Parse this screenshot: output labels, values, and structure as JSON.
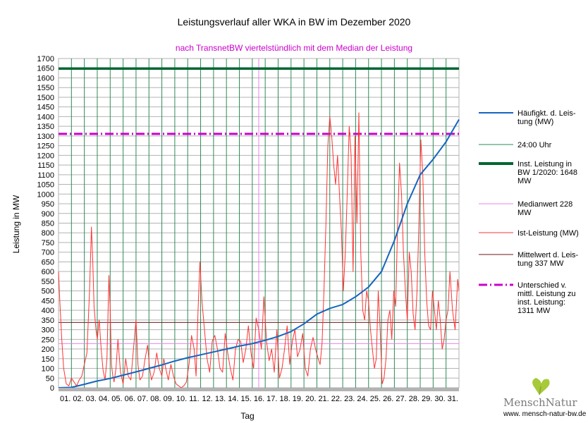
{
  "chart_data": {
    "type": "line",
    "title": "Leistungsverlauf aller WKA in BW im Dezember 2020",
    "subtitle": "nach TransnetBW viertelstündlich mit dem Median der Leistung",
    "xlabel": "Tag",
    "ylabel": "Leistung in MW",
    "ylim": [
      0,
      1700
    ],
    "ystep": 50,
    "xlim": [
      1,
      32
    ],
    "yticks": [
      "0",
      "50",
      "100",
      "150",
      "200",
      "250",
      "300",
      "350",
      "400",
      "450",
      "500",
      "550",
      "600",
      "650",
      "700",
      "750",
      "800",
      "850",
      "900",
      "950",
      "1000",
      "1050",
      "1100",
      "1150",
      "1200",
      "1250",
      "1300",
      "1350",
      "1400",
      "1450",
      "1500",
      "1550",
      "1600",
      "1650",
      "1700"
    ],
    "day_labels": [
      "01.",
      "02.",
      "03.",
      "04.",
      "05.",
      "06.",
      "07.",
      "08.",
      "09.",
      "10.",
      "11.",
      "12.",
      "13.",
      "14.",
      "15.",
      "16.",
      "17.",
      "18.",
      "19.",
      "20.",
      "21.",
      "22.",
      "23.",
      "24.",
      "25.",
      "26.",
      "27.",
      "28.",
      "29.",
      "30.",
      "31."
    ],
    "series": [
      {
        "name": "Häufigkt. d. Leis-tung (MW)",
        "legend_lines": [
          "Häufigkt. d. Leis-",
          "tung (MW)"
        ],
        "color": "#1565c0",
        "kind": "curve",
        "x": [
          1,
          2,
          3,
          4,
          5,
          6,
          7,
          8,
          9,
          10,
          11,
          12,
          13,
          14,
          15,
          16,
          17,
          18,
          19,
          20,
          21,
          22,
          23,
          24,
          25,
          26,
          27,
          28,
          29,
          30,
          31,
          32
        ],
        "values": [
          0,
          2,
          18,
          35,
          48,
          65,
          82,
          100,
          118,
          138,
          155,
          170,
          185,
          200,
          215,
          228,
          245,
          265,
          290,
          330,
          380,
          410,
          430,
          470,
          520,
          600,
          760,
          950,
          1100,
          1180,
          1270,
          1385
        ]
      },
      {
        "name": "24:00 Uhr",
        "legend_lines": [
          "24:00 Uhr"
        ],
        "color": "#2e8b57",
        "kind": "day-boundaries"
      },
      {
        "name": "Inst. Leistung in BW 1/2020: 1648 MW",
        "legend_lines": [
          "Inst. Leistung in",
          "BW 1/2020: 1648",
          "MW"
        ],
        "color": "#006633",
        "kind": "hline",
        "value": 1648
      },
      {
        "name": "Medianwert 228 MW",
        "legend_lines": [
          "Medianwert 228",
          "MW"
        ],
        "color": "#ee82ee",
        "kind": "hline",
        "value": 228
      },
      {
        "name": "Ist-Leistung (MW)",
        "legend_lines": [
          "Ist-Leistung (MW)"
        ],
        "color": "#ff3333",
        "kind": "curve",
        "x": [
          1.0,
          1.1,
          1.25,
          1.4,
          1.6,
          1.8,
          2.0,
          2.2,
          2.4,
          2.6,
          2.8,
          3.0,
          3.2,
          3.4,
          3.55,
          3.65,
          3.75,
          3.9,
          4.0,
          4.15,
          4.3,
          4.45,
          4.6,
          4.75,
          4.9,
          5.0,
          5.1,
          5.2,
          5.3,
          5.45,
          5.6,
          5.8,
          6.0,
          6.2,
          6.4,
          6.6,
          6.8,
          7.0,
          7.15,
          7.3,
          7.5,
          7.7,
          7.9,
          8.05,
          8.2,
          8.4,
          8.6,
          8.8,
          9.0,
          9.15,
          9.3,
          9.5,
          9.7,
          9.9,
          10.1,
          10.3,
          10.5,
          10.7,
          10.9,
          11.1,
          11.3,
          11.5,
          11.65,
          11.8,
          11.95,
          12.1,
          12.3,
          12.5,
          12.7,
          12.9,
          13.1,
          13.3,
          13.5,
          13.7,
          13.9,
          14.1,
          14.3,
          14.5,
          14.7,
          14.9,
          15.1,
          15.3,
          15.5,
          15.7,
          15.9,
          16.1,
          16.3,
          16.5,
          16.7,
          16.9,
          17.1,
          17.3,
          17.5,
          17.7,
          17.9,
          18.1,
          18.3,
          18.5,
          18.7,
          18.9,
          19.1,
          19.3,
          19.5,
          19.7,
          19.9,
          20.1,
          20.3,
          20.5,
          20.7,
          20.9,
          21.1,
          21.25,
          21.4,
          21.55,
          21.7,
          21.85,
          22.0,
          22.15,
          22.3,
          22.45,
          22.6,
          22.75,
          22.9,
          23.05,
          23.2,
          23.35,
          23.5,
          23.65,
          23.8,
          23.95,
          24.1,
          24.25,
          24.4,
          24.55,
          24.7,
          24.85,
          25.0,
          25.15,
          25.3,
          25.45,
          25.6,
          25.75,
          25.9,
          26.05,
          26.2,
          26.35,
          26.5,
          26.65,
          26.8,
          26.95,
          27.1,
          27.25,
          27.4,
          27.55,
          27.7,
          27.85,
          28.0,
          28.15,
          28.3,
          28.45,
          28.6,
          28.75,
          28.9,
          29.05,
          29.2,
          29.35,
          29.5,
          29.65,
          29.8,
          29.95,
          30.1,
          30.25,
          30.4,
          30.55,
          30.7,
          30.85,
          31.0,
          31.15,
          31.3,
          31.5,
          31.7,
          31.9,
          32.0
        ],
        "values": [
          600,
          450,
          250,
          100,
          20,
          10,
          50,
          30,
          10,
          40,
          60,
          120,
          180,
          500,
          830,
          650,
          420,
          300,
          250,
          350,
          200,
          90,
          40,
          150,
          580,
          400,
          120,
          60,
          30,
          100,
          250,
          80,
          20,
          150,
          60,
          40,
          200,
          350,
          120,
          40,
          60,
          150,
          220,
          100,
          40,
          80,
          180,
          100,
          60,
          150,
          100,
          40,
          120,
          60,
          20,
          10,
          0,
          10,
          30,
          120,
          270,
          200,
          60,
          400,
          650,
          450,
          300,
          150,
          80,
          240,
          270,
          200,
          100,
          80,
          280,
          180,
          100,
          40,
          200,
          250,
          240,
          130,
          200,
          320,
          180,
          100,
          360,
          300,
          200,
          470,
          240,
          140,
          200,
          80,
          300,
          50,
          100,
          200,
          320,
          120,
          240,
          300,
          160,
          200,
          280,
          100,
          60,
          200,
          260,
          200,
          150,
          120,
          230,
          500,
          850,
          1250,
          1400,
          1300,
          1150,
          1050,
          1200,
          1000,
          800,
          500,
          700,
          1000,
          1350,
          1200,
          600,
          1300,
          850,
          1420,
          700,
          400,
          350,
          500,
          450,
          300,
          200,
          100,
          150,
          500,
          300,
          20,
          50,
          150,
          350,
          400,
          250,
          500,
          420,
          850,
          1160,
          1000,
          700,
          500,
          350,
          700,
          600,
          380,
          300,
          500,
          850,
          1280,
          1100,
          700,
          450,
          320,
          300,
          500,
          400,
          300,
          450,
          350,
          200,
          250,
          350,
          400,
          600,
          400,
          300,
          560,
          500
        ]
      },
      {
        "name": "Mittelwert d. Leis-tung 337 MW",
        "legend_lines": [
          "Mittelwert d. Leis-",
          "tung 337 MW"
        ],
        "color": "#6b1a1a",
        "kind": "hline",
        "value": 337
      },
      {
        "name": "Unterschied v. mittl. Leistung zu inst. Leistung: 1311 MW",
        "legend_lines": [
          "Unterschied v.",
          "mittl. Leistung zu",
          "inst. Leistung:",
          "1311 MW"
        ],
        "color": "#cc00cc",
        "kind": "hline-dashed",
        "value": 1311
      }
    ],
    "median_day_marker": 16.5,
    "grid": true,
    "legend_position": "right"
  },
  "branding": {
    "logo_text": "MenschNatur",
    "url": "www. mensch-natur-bw.de",
    "leaf_color": "#a8c93a"
  }
}
